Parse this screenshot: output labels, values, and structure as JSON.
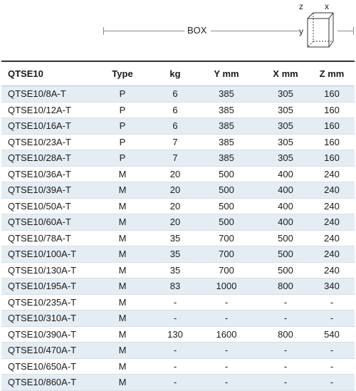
{
  "header": {
    "box_label": "BOX",
    "axis_z": "z",
    "axis_x": "x",
    "axis_y": "y"
  },
  "table": {
    "columns": [
      "QTSE10",
      "Type",
      "kg",
      "Y mm",
      "X mm",
      "Z mm"
    ],
    "rows": [
      [
        "QTSE10/8A-T",
        "P",
        "6",
        "385",
        "305",
        "160"
      ],
      [
        "QTSE10/12A-T",
        "P",
        "6",
        "385",
        "305",
        "160"
      ],
      [
        "QTSE10/16A-T",
        "P",
        "6",
        "385",
        "305",
        "160"
      ],
      [
        "QTSE10/23A-T",
        "P",
        "7",
        "385",
        "305",
        "160"
      ],
      [
        "QTSE10/28A-T",
        "P",
        "7",
        "385",
        "305",
        "160"
      ],
      [
        "QTSE10/36A-T",
        "M",
        "20",
        "500",
        "400",
        "240"
      ],
      [
        "QTSE10/39A-T",
        "M",
        "20",
        "500",
        "400",
        "240"
      ],
      [
        "QTSE10/50A-T",
        "M",
        "20",
        "500",
        "400",
        "240"
      ],
      [
        "QTSE10/60A-T",
        "M",
        "20",
        "500",
        "400",
        "240"
      ],
      [
        "QTSE10/78A-T",
        "M",
        "35",
        "700",
        "500",
        "240"
      ],
      [
        "QTSE10/100A-T",
        "M",
        "35",
        "700",
        "500",
        "240"
      ],
      [
        "QTSE10/130A-T",
        "M",
        "35",
        "700",
        "500",
        "240"
      ],
      [
        "QTSE10/195A-T",
        "M",
        "83",
        "1000",
        "800",
        "340"
      ],
      [
        "QTSE10/235A-T",
        "M",
        "-",
        "-",
        "-",
        "-"
      ],
      [
        "QTSE10/310A-T",
        "M",
        "-",
        "-",
        "-",
        "-"
      ],
      [
        "QTSE10/390A-T",
        "M",
        "130",
        "1600",
        "800",
        "540"
      ],
      [
        "QTSE10/470A-T",
        "M",
        "-",
        "-",
        "-",
        "-"
      ],
      [
        "QTSE10/650A-T",
        "M",
        "-",
        "-",
        "-",
        "-"
      ],
      [
        "QTSE10/860A-T",
        "M",
        "-",
        "-",
        "-",
        "-"
      ]
    ]
  },
  "colors": {
    "row_stripe": "#e4ecf4",
    "rule": "#333333"
  }
}
